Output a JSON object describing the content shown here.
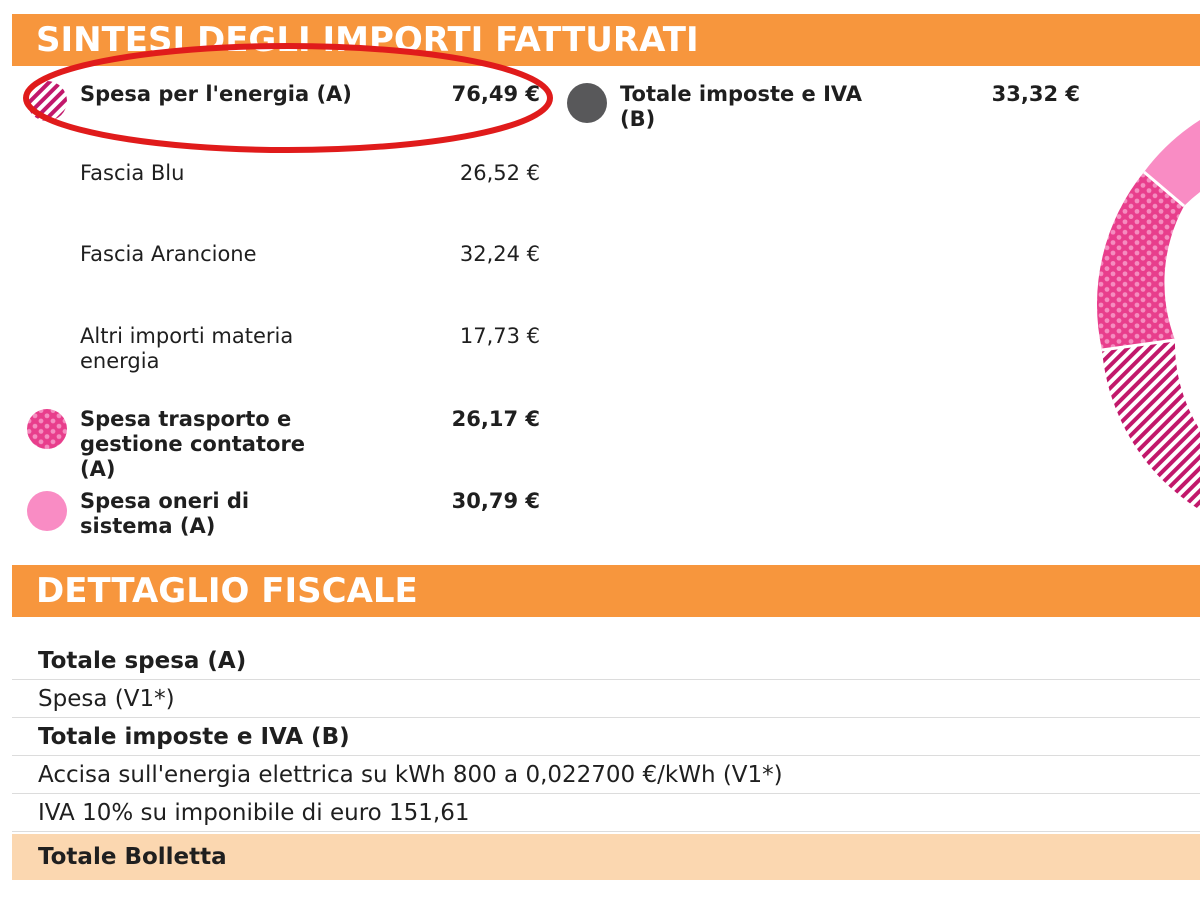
{
  "summary": {
    "title": "SINTESI DEGLI IMPORTI FATTURATI",
    "items": [
      {
        "label": "Spesa per l'energia (A)",
        "amount": "76,49 €",
        "icon": "diagonal-stripe-circle-icon"
      },
      {
        "label": "Fascia Blu",
        "amount": "26,52 €"
      },
      {
        "label": "Fascia Arancione",
        "amount": "32,24 €"
      },
      {
        "label": "Altri importi materia energia",
        "amount": "17,73 €"
      },
      {
        "label": "Spesa trasporto e gestione contatore (A)",
        "amount": "26,17 €",
        "icon": "hexagon-pattern-circle-icon"
      },
      {
        "label": "Spesa oneri di sistema (A)",
        "amount": "30,79 €",
        "icon": "pink-circle-icon"
      }
    ],
    "taxes": {
      "label": "Totale imposte e IVA (B)",
      "amount": "33,32 €",
      "icon": "dark-gray-circle-icon"
    }
  },
  "fiscal": {
    "title": "DETTAGLIO FISCALE",
    "rows": [
      "Totale spesa (A)",
      "Spesa (V1*)",
      "Totale imposte e IVA (B)",
      "Accisa sull'energia elettrica su kWh 800 a 0,022700 €/kWh (V1*)",
      "IVA 10% su imponibile di euro 151,61"
    ],
    "total": "Totale Bolletta"
  },
  "colors": {
    "header_orange": "#f7963d",
    "highlight_red": "#e01b1b",
    "energy_magenta": "#d12a7a",
    "transport_pink": "#ee4fa0",
    "system_pink": "#f98cc4",
    "tax_gray": "#58585a",
    "total_row": "#fbd7b0"
  }
}
